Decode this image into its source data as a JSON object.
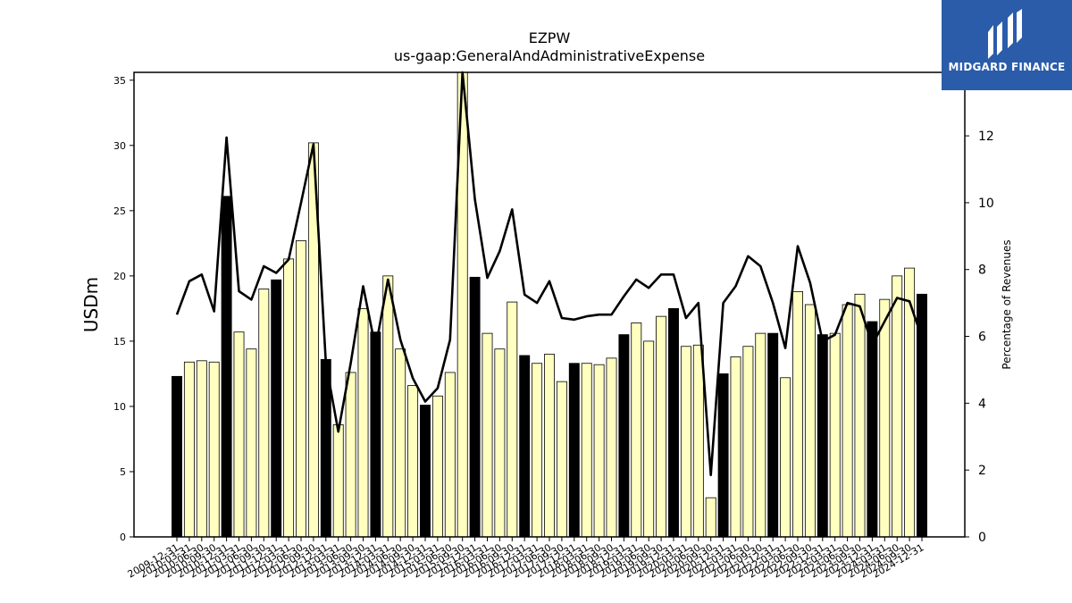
{
  "chart_data": {
    "type": "bar",
    "title": "EZPW",
    "subtitle": "us-gaap:GeneralAndAdministrativeExpense",
    "ylabel": "USDm",
    "y2label": "Percentage of Revenues",
    "ylim": [
      0,
      35.6
    ],
    "y2lim": [
      0,
      13.9
    ],
    "yticks": [
      0,
      5,
      10,
      15,
      20,
      25,
      30,
      35
    ],
    "y2ticks": [
      0,
      2,
      4,
      6,
      8,
      10,
      12
    ],
    "x_visible_labels": [
      "2009-12-31",
      "2010-03-31",
      "2010-06-30",
      "2010-09-30",
      "2010-12-31",
      "2011-03-31",
      "2011-06-30",
      "2011-09-30",
      "2011-12-31",
      "2012-03-31",
      "2012-06-30",
      "2012-09-30",
      "2012-12-31",
      "2013-03-31",
      "2013-06-30",
      "2013-09-30",
      "2013-12-31",
      "2014-03-31",
      "2014-06-30",
      "2014-09-30",
      "2014-12-31",
      "2015-03-31",
      "2015-06-30",
      "2015-09-30",
      "2015-12-31",
      "2016-03-31",
      "2016-06-30",
      "2016-09-30",
      "2016-12-31",
      "2017-03-31",
      "2017-06-30",
      "2017-09-30",
      "2017-12-31",
      "2018-03-31",
      "2018-06-30",
      "2018-09-30",
      "2018-12-31",
      "2019-03-31",
      "2019-06-30",
      "2019-09-30",
      "2019-12-31",
      "2020-03-31",
      "2020-06-30",
      "2020-09-30",
      "2020-12-31",
      "2021-03-31",
      "2021-06-30",
      "2021-09-30",
      "2021-12-31",
      "2022-03-31",
      "2022-06-30",
      "2022-09-30",
      "2022-12-31",
      "2023-03-31",
      "2023-06-30",
      "2023-09-30",
      "2023-12-31",
      "2024-03-31",
      "2024-06-30",
      "2024-09-30",
      "2024-12-31"
    ],
    "bar_values": [
      12.3,
      13.4,
      13.5,
      13.4,
      26.1,
      15.7,
      14.4,
      19.0,
      19.7,
      21.3,
      22.7,
      30.2,
      13.6,
      8.6,
      12.6,
      17.5,
      15.7,
      20.0,
      14.4,
      11.6,
      10.1,
      10.8,
      12.6,
      36.0,
      19.9,
      15.6,
      14.4,
      18.0,
      13.9,
      13.3,
      14.0,
      11.9,
      13.3,
      13.3,
      13.2,
      13.7,
      15.5,
      16.4,
      15.0,
      16.9,
      17.5,
      14.6,
      14.7,
      3.0,
      12.5,
      13.8,
      14.6,
      15.6,
      15.6,
      12.2,
      18.8,
      17.8,
      15.5,
      15.6,
      17.8,
      18.6,
      16.5,
      18.2,
      20.0,
      20.6,
      18.6
    ],
    "bar_is_fiscal_year_end": [
      true,
      false,
      false,
      false,
      true,
      false,
      false,
      false,
      true,
      false,
      false,
      false,
      true,
      false,
      false,
      false,
      true,
      false,
      false,
      false,
      true,
      false,
      false,
      false,
      true,
      false,
      false,
      false,
      true,
      false,
      false,
      false,
      true,
      false,
      false,
      false,
      true,
      false,
      false,
      false,
      true,
      false,
      false,
      false,
      true,
      false,
      false,
      false,
      true,
      false,
      false,
      false,
      true,
      false,
      false,
      false,
      true,
      false,
      false,
      false,
      true
    ],
    "line_values": [
      6.65,
      7.65,
      7.85,
      6.75,
      11.95,
      7.35,
      7.1,
      8.1,
      7.9,
      8.3,
      10.0,
      11.75,
      5.2,
      3.15,
      5.2,
      7.5,
      5.65,
      7.7,
      5.9,
      4.75,
      4.05,
      4.45,
      5.9,
      14.0,
      10.1,
      7.75,
      8.55,
      9.8,
      7.25,
      7.0,
      7.65,
      6.55,
      6.5,
      6.6,
      6.65,
      6.65,
      7.2,
      7.7,
      7.45,
      7.85,
      7.85,
      6.55,
      7.0,
      1.85,
      7.0,
      7.5,
      8.4,
      8.1,
      7.0,
      5.65,
      8.7,
      7.6,
      5.85,
      6.05,
      7.0,
      6.9,
      5.75,
      6.45,
      7.15,
      7.05,
      5.95
    ],
    "colors": {
      "bar_fill": "#ffffc0",
      "bar_fill_fiscal_year_end": "#000000",
      "bar_edge": "#000000",
      "line": "#000000"
    }
  },
  "brand": {
    "name": "MIDGARD FINANCE",
    "background": "#2a5caa"
  }
}
